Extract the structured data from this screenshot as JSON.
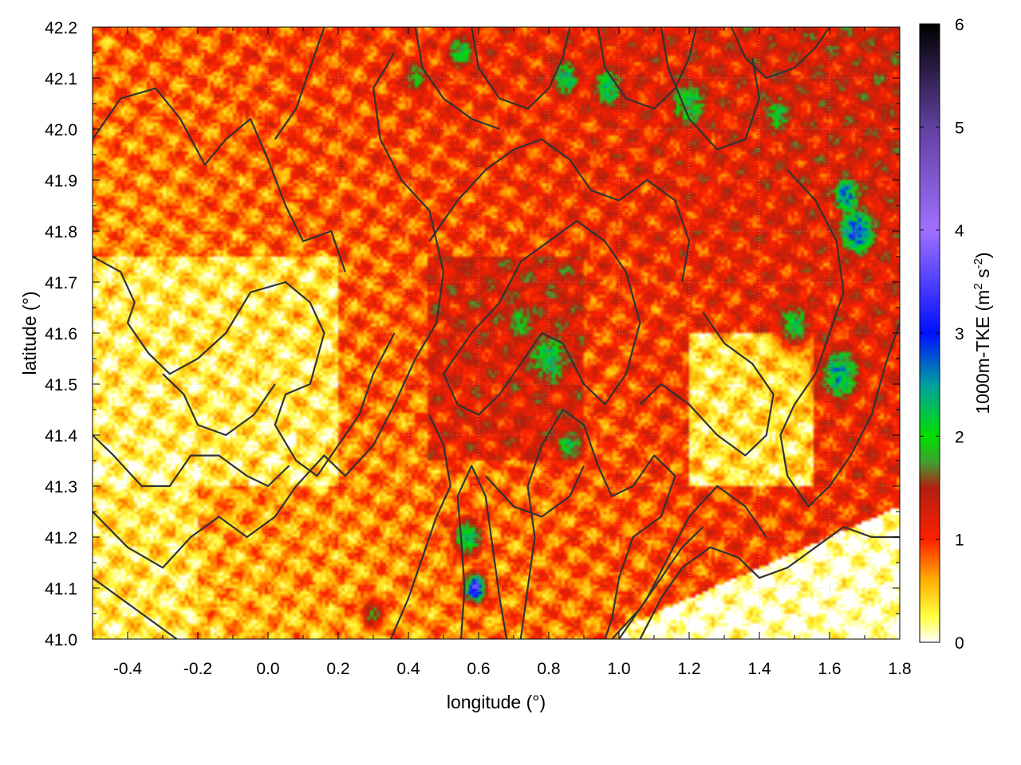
{
  "chart_data": {
    "type": "heatmap",
    "title": "",
    "xlabel": "longitude (°)",
    "ylabel": "latitude (°)",
    "colorbar_label": "1000m-TKE (m² s⁻²)",
    "colorbar_label_parts": {
      "prefix": "1000m-TKE (m",
      "sup1": "2",
      "mid": " s",
      "sup2": "-2",
      "suffix": ")"
    },
    "xlim": [
      -0.5,
      1.8
    ],
    "ylim": [
      41.0,
      42.2
    ],
    "x_ticks": [
      -0.4,
      -0.2,
      0.0,
      0.2,
      0.4,
      0.6,
      0.8,
      1.0,
      1.2,
      1.4,
      1.6,
      1.8
    ],
    "x_tick_labels": [
      "-0.4",
      "-0.2",
      "0.0",
      "0.2",
      "0.4",
      "0.6",
      "0.8",
      "1.0",
      "1.2",
      "1.4",
      "1.6",
      "1.8"
    ],
    "y_ticks": [
      41.0,
      41.1,
      41.2,
      41.3,
      41.4,
      41.5,
      41.6,
      41.7,
      41.8,
      41.9,
      42.0,
      42.1,
      42.2
    ],
    "y_tick_labels": [
      "41.0",
      "41.1",
      "41.2",
      "41.3",
      "41.4",
      "41.5",
      "41.6",
      "41.7",
      "41.8",
      "41.9",
      "42.0",
      "42.1",
      "42.2"
    ],
    "colorbar_range": [
      0,
      6
    ],
    "colorbar_ticks": [
      0,
      1,
      2,
      3,
      4,
      5,
      6
    ],
    "colorbar_tick_labels": [
      "0",
      "1",
      "2",
      "3",
      "4",
      "5",
      "6"
    ],
    "colormap": [
      {
        "v": 0.0,
        "c": "#ffffff"
      },
      {
        "v": 0.25,
        "c": "#ffff40"
      },
      {
        "v": 0.6,
        "c": "#ffb000"
      },
      {
        "v": 1.0,
        "c": "#ff2000"
      },
      {
        "v": 1.5,
        "c": "#b02010"
      },
      {
        "v": 1.75,
        "c": "#40a030"
      },
      {
        "v": 2.0,
        "c": "#00e000"
      },
      {
        "v": 2.5,
        "c": "#00a0a0"
      },
      {
        "v": 3.0,
        "c": "#0010ff"
      },
      {
        "v": 4.0,
        "c": "#a070ff"
      },
      {
        "v": 5.0,
        "c": "#6040a0"
      },
      {
        "v": 6.0,
        "c": "#000000"
      }
    ],
    "grid": true,
    "contour_color": "#333333",
    "hotspots": [
      {
        "lon": 0.59,
        "lat": 41.1,
        "tke": 3.5,
        "r": 0.035
      },
      {
        "lon": 0.57,
        "lat": 41.2,
        "tke": 2.4,
        "r": 0.05
      },
      {
        "lon": 0.8,
        "lat": 41.55,
        "tke": 2.3,
        "r": 0.08
      },
      {
        "lon": 0.72,
        "lat": 41.62,
        "tke": 2.0,
        "r": 0.06
      },
      {
        "lon": 0.86,
        "lat": 41.38,
        "tke": 2.2,
        "r": 0.05
      },
      {
        "lon": 1.68,
        "lat": 41.8,
        "tke": 3.2,
        "r": 0.06
      },
      {
        "lon": 1.65,
        "lat": 41.87,
        "tke": 2.8,
        "r": 0.05
      },
      {
        "lon": 1.63,
        "lat": 41.52,
        "tke": 2.6,
        "r": 0.07
      },
      {
        "lon": 1.5,
        "lat": 41.62,
        "tke": 2.2,
        "r": 0.06
      },
      {
        "lon": 0.97,
        "lat": 42.08,
        "tke": 2.3,
        "r": 0.06
      },
      {
        "lon": 0.85,
        "lat": 42.1,
        "tke": 2.4,
        "r": 0.05
      },
      {
        "lon": 1.2,
        "lat": 42.05,
        "tke": 2.2,
        "r": 0.07
      },
      {
        "lon": 1.45,
        "lat": 42.03,
        "tke": 2.1,
        "r": 0.06
      },
      {
        "lon": 0.55,
        "lat": 42.15,
        "tke": 2.2,
        "r": 0.05
      },
      {
        "lon": 0.42,
        "lat": 42.1,
        "tke": 2.0,
        "r": 0.05
      },
      {
        "lon": 0.3,
        "lat": 41.05,
        "tke": 1.9,
        "r": 0.04
      }
    ],
    "contours": [
      [
        [
          -0.5,
          41.98
        ],
        [
          -0.42,
          42.06
        ],
        [
          -0.32,
          42.08
        ],
        [
          -0.25,
          42.02
        ],
        [
          -0.18,
          41.93
        ],
        [
          -0.12,
          41.98
        ],
        [
          -0.05,
          42.02
        ],
        [
          0.0,
          41.94
        ],
        [
          0.05,
          41.85
        ],
        [
          0.1,
          41.78
        ],
        [
          0.18,
          41.8
        ],
        [
          0.22,
          41.72
        ]
      ],
      [
        [
          -0.5,
          41.75
        ],
        [
          -0.42,
          41.72
        ],
        [
          -0.38,
          41.66
        ],
        [
          -0.4,
          41.62
        ],
        [
          -0.34,
          41.56
        ],
        [
          -0.28,
          41.52
        ],
        [
          -0.2,
          41.55
        ],
        [
          -0.12,
          41.6
        ],
        [
          -0.05,
          41.68
        ],
        [
          0.05,
          41.7
        ],
        [
          0.12,
          41.66
        ],
        [
          0.16,
          41.6
        ],
        [
          0.12,
          41.5
        ],
        [
          0.05,
          41.48
        ],
        [
          0.02,
          41.42
        ],
        [
          0.08,
          41.35
        ],
        [
          0.14,
          41.32
        ],
        [
          0.2,
          41.38
        ],
        [
          0.26,
          41.44
        ],
        [
          0.3,
          41.52
        ],
        [
          0.36,
          41.6
        ]
      ],
      [
        [
          -0.5,
          41.25
        ],
        [
          -0.4,
          41.18
        ],
        [
          -0.3,
          41.14
        ],
        [
          -0.22,
          41.2
        ],
        [
          -0.14,
          41.24
        ],
        [
          -0.06,
          41.2
        ],
        [
          0.02,
          41.24
        ],
        [
          0.08,
          41.3
        ],
        [
          0.16,
          41.36
        ],
        [
          0.22,
          41.32
        ],
        [
          0.3,
          41.38
        ],
        [
          0.36,
          41.46
        ],
        [
          0.42,
          41.55
        ],
        [
          0.48,
          41.62
        ],
        [
          0.5,
          41.72
        ],
        [
          0.46,
          41.84
        ],
        [
          0.38,
          41.9
        ],
        [
          0.32,
          41.98
        ],
        [
          0.3,
          42.08
        ],
        [
          0.36,
          42.15
        ]
      ],
      [
        [
          -0.5,
          41.12
        ],
        [
          -0.42,
          41.08
        ],
        [
          -0.34,
          41.04
        ],
        [
          -0.26,
          41.0
        ]
      ],
      [
        [
          0.35,
          41.0
        ],
        [
          0.4,
          41.08
        ],
        [
          0.44,
          41.16
        ],
        [
          0.48,
          41.24
        ],
        [
          0.52,
          41.3
        ],
        [
          0.5,
          41.38
        ],
        [
          0.46,
          41.44
        ]
      ],
      [
        [
          0.55,
          41.0
        ],
        [
          0.56,
          41.1
        ],
        [
          0.55,
          41.2
        ],
        [
          0.54,
          41.28
        ],
        [
          0.58,
          41.34
        ],
        [
          0.62,
          41.28
        ],
        [
          0.64,
          41.18
        ],
        [
          0.66,
          41.08
        ],
        [
          0.68,
          41.0
        ]
      ],
      [
        [
          0.72,
          41.0
        ],
        [
          0.74,
          41.1
        ],
        [
          0.76,
          41.2
        ],
        [
          0.74,
          41.3
        ],
        [
          0.78,
          41.38
        ],
        [
          0.84,
          41.45
        ],
        [
          0.9,
          41.42
        ],
        [
          0.94,
          41.34
        ],
        [
          0.98,
          41.28
        ],
        [
          1.04,
          41.3
        ],
        [
          1.1,
          41.36
        ],
        [
          1.16,
          41.32
        ],
        [
          1.12,
          41.24
        ],
        [
          1.04,
          41.2
        ],
        [
          1.0,
          41.12
        ],
        [
          0.98,
          41.04
        ],
        [
          0.96,
          41.0
        ]
      ],
      [
        [
          0.5,
          41.52
        ],
        [
          0.58,
          41.6
        ],
        [
          0.66,
          41.66
        ],
        [
          0.72,
          41.74
        ],
        [
          0.8,
          41.78
        ],
        [
          0.88,
          41.82
        ],
        [
          0.96,
          41.78
        ],
        [
          1.02,
          41.72
        ],
        [
          1.06,
          41.62
        ],
        [
          1.02,
          41.52
        ],
        [
          0.96,
          41.46
        ],
        [
          0.9,
          41.5
        ],
        [
          0.84,
          41.58
        ],
        [
          0.78,
          41.6
        ],
        [
          0.72,
          41.54
        ],
        [
          0.66,
          41.48
        ],
        [
          0.6,
          41.44
        ],
        [
          0.54,
          41.46
        ],
        [
          0.5,
          41.52
        ]
      ],
      [
        [
          0.46,
          41.78
        ],
        [
          0.54,
          41.86
        ],
        [
          0.62,
          41.92
        ],
        [
          0.7,
          41.96
        ],
        [
          0.78,
          41.98
        ],
        [
          0.86,
          41.94
        ],
        [
          0.92,
          41.88
        ],
        [
          1.0,
          41.86
        ],
        [
          1.08,
          41.9
        ],
        [
          1.16,
          41.86
        ],
        [
          1.2,
          41.78
        ],
        [
          1.18,
          41.7
        ]
      ],
      [
        [
          0.58,
          42.2
        ],
        [
          0.6,
          42.12
        ],
        [
          0.66,
          42.06
        ],
        [
          0.74,
          42.04
        ],
        [
          0.8,
          42.08
        ],
        [
          0.84,
          42.14
        ],
        [
          0.86,
          42.2
        ]
      ],
      [
        [
          0.94,
          42.2
        ],
        [
          0.96,
          42.12
        ],
        [
          1.02,
          42.06
        ],
        [
          1.1,
          42.04
        ],
        [
          1.16,
          42.08
        ],
        [
          1.2,
          42.14
        ],
        [
          1.22,
          42.2
        ]
      ],
      [
        [
          1.32,
          42.2
        ],
        [
          1.36,
          42.14
        ],
        [
          1.42,
          42.1
        ],
        [
          1.5,
          42.12
        ],
        [
          1.56,
          42.16
        ],
        [
          1.6,
          42.2
        ]
      ],
      [
        [
          1.24,
          41.64
        ],
        [
          1.3,
          41.58
        ],
        [
          1.38,
          41.54
        ],
        [
          1.44,
          41.48
        ],
        [
          1.42,
          41.4
        ],
        [
          1.36,
          41.36
        ],
        [
          1.28,
          41.4
        ],
        [
          1.2,
          41.46
        ],
        [
          1.12,
          41.5
        ],
        [
          1.06,
          41.46
        ]
      ],
      [
        [
          1.48,
          41.92
        ],
        [
          1.56,
          41.86
        ],
        [
          1.62,
          41.78
        ],
        [
          1.64,
          41.68
        ],
        [
          1.6,
          41.6
        ],
        [
          1.56,
          41.52
        ],
        [
          1.5,
          41.46
        ],
        [
          1.46,
          41.4
        ],
        [
          1.48,
          41.32
        ],
        [
          1.54,
          41.26
        ],
        [
          1.6,
          41.3
        ],
        [
          1.66,
          41.36
        ],
        [
          1.72,
          41.44
        ],
        [
          1.76,
          41.54
        ],
        [
          1.8,
          41.62
        ]
      ],
      [
        [
          1.0,
          41.0
        ],
        [
          1.08,
          41.08
        ],
        [
          1.14,
          41.16
        ],
        [
          1.2,
          41.24
        ],
        [
          1.28,
          41.3
        ],
        [
          1.36,
          41.26
        ],
        [
          1.42,
          41.2
        ]
      ],
      [
        [
          0.98,
          41.0
        ],
        [
          1.06,
          41.06
        ],
        [
          1.12,
          41.12
        ],
        [
          1.18,
          41.18
        ],
        [
          1.24,
          41.22
        ]
      ],
      [
        [
          1.06,
          41.0
        ],
        [
          1.12,
          41.08
        ],
        [
          1.18,
          41.14
        ],
        [
          1.26,
          41.18
        ],
        [
          1.34,
          41.16
        ],
        [
          1.4,
          41.12
        ],
        [
          1.48,
          41.14
        ],
        [
          1.56,
          41.18
        ],
        [
          1.64,
          41.22
        ],
        [
          1.72,
          41.2
        ],
        [
          1.8,
          41.2
        ]
      ],
      [
        [
          -0.5,
          41.4
        ],
        [
          -0.44,
          41.36
        ],
        [
          -0.36,
          41.3
        ],
        [
          -0.28,
          41.3
        ],
        [
          -0.22,
          41.36
        ],
        [
          -0.14,
          41.36
        ],
        [
          -0.06,
          41.32
        ],
        [
          0.0,
          41.3
        ],
        [
          0.06,
          41.34
        ]
      ],
      [
        [
          -0.3,
          41.52
        ],
        [
          -0.24,
          41.48
        ],
        [
          -0.2,
          41.42
        ],
        [
          -0.12,
          41.4
        ],
        [
          -0.04,
          41.44
        ],
        [
          0.02,
          41.5
        ]
      ],
      [
        [
          0.02,
          41.98
        ],
        [
          0.08,
          42.04
        ],
        [
          0.12,
          42.12
        ],
        [
          0.16,
          42.2
        ]
      ],
      [
        [
          0.62,
          41.32
        ],
        [
          0.7,
          41.26
        ],
        [
          0.78,
          41.24
        ],
        [
          0.86,
          41.28
        ],
        [
          0.9,
          41.34
        ]
      ],
      [
        [
          1.12,
          42.2
        ],
        [
          1.14,
          42.12
        ],
        [
          1.2,
          42.02
        ],
        [
          1.28,
          41.96
        ],
        [
          1.36,
          41.98
        ],
        [
          1.4,
          42.06
        ],
        [
          1.38,
          42.14
        ]
      ],
      [
        [
          0.42,
          42.2
        ],
        [
          0.44,
          42.12
        ],
        [
          0.5,
          42.06
        ],
        [
          0.58,
          42.02
        ],
        [
          0.66,
          42.0
        ]
      ]
    ]
  }
}
